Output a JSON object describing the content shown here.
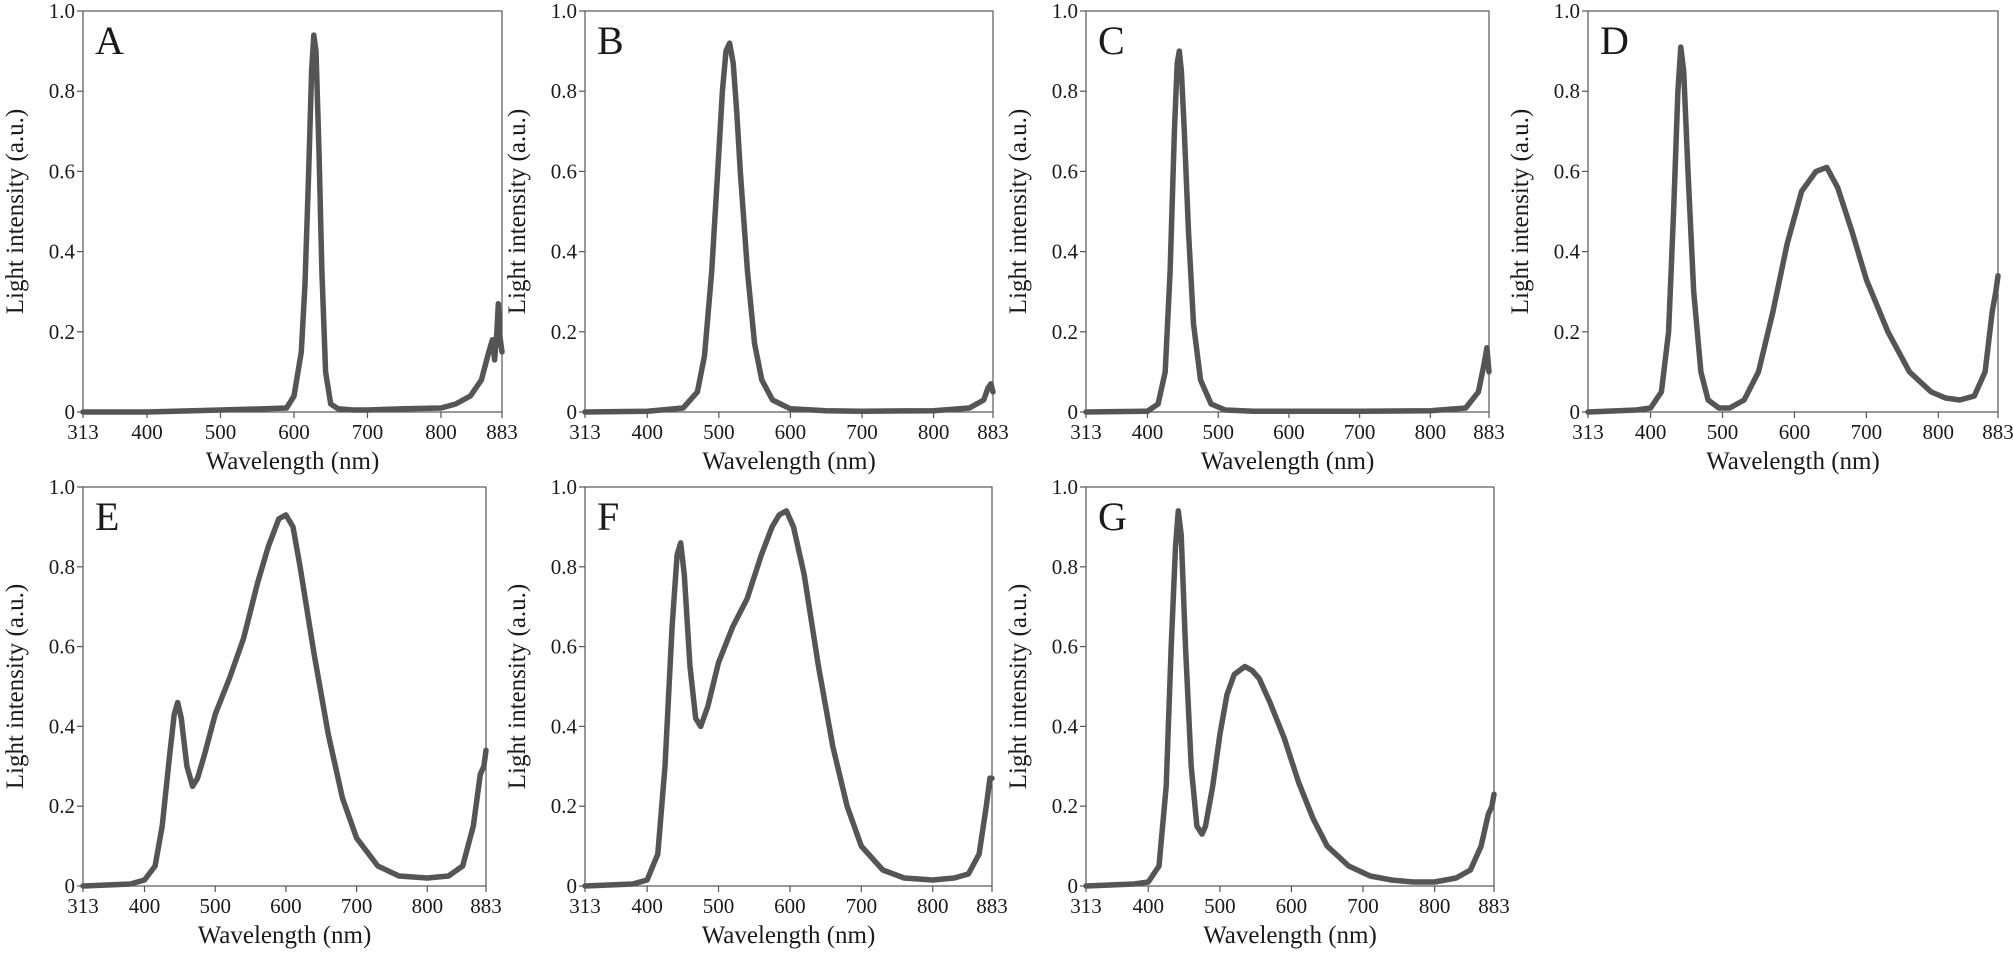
{
  "style": {
    "line_color": "#555555",
    "axis_color": "#555555",
    "background": "#ffffff"
  },
  "chart_data": [
    {
      "type": "line",
      "panel_label": "A",
      "xlabel": "Wavelength (nm)",
      "ylabel": "Light intensity (a.u.)",
      "xlim": [
        313,
        883
      ],
      "ylim": [
        0,
        1.0
      ],
      "x_ticks": [
        313,
        400,
        500,
        600,
        700,
        800,
        883
      ],
      "y_ticks": [
        0,
        0.2,
        0.4,
        0.6,
        0.8,
        1.0
      ],
      "grid": false,
      "x": [
        313,
        400,
        500,
        560,
        590,
        600,
        610,
        615,
        620,
        624,
        627,
        630,
        634,
        638,
        643,
        650,
        660,
        680,
        700,
        750,
        800,
        820,
        840,
        855,
        865,
        870,
        873,
        876,
        878,
        880,
        883
      ],
      "y": [
        0.0,
        0.0,
        0.005,
        0.008,
        0.01,
        0.04,
        0.15,
        0.32,
        0.6,
        0.85,
        0.94,
        0.9,
        0.65,
        0.35,
        0.1,
        0.02,
        0.008,
        0.005,
        0.005,
        0.008,
        0.01,
        0.02,
        0.04,
        0.08,
        0.15,
        0.18,
        0.13,
        0.2,
        0.27,
        0.19,
        0.15
      ]
    },
    {
      "type": "line",
      "panel_label": "B",
      "xlabel": "Wavelength (nm)",
      "ylabel": "Light intensity (a.u.)",
      "xlim": [
        313,
        883
      ],
      "ylim": [
        0,
        1.0
      ],
      "x_ticks": [
        313,
        400,
        500,
        600,
        700,
        800,
        883
      ],
      "y_ticks": [
        0,
        0.2,
        0.4,
        0.6,
        0.8,
        1.0
      ],
      "grid": false,
      "x": [
        313,
        400,
        450,
        470,
        480,
        490,
        500,
        505,
        510,
        515,
        520,
        525,
        530,
        540,
        550,
        560,
        575,
        600,
        650,
        700,
        800,
        850,
        870,
        876,
        880,
        883
      ],
      "y": [
        0.0,
        0.002,
        0.01,
        0.05,
        0.14,
        0.35,
        0.65,
        0.8,
        0.9,
        0.92,
        0.87,
        0.75,
        0.6,
        0.35,
        0.17,
        0.08,
        0.03,
        0.008,
        0.003,
        0.002,
        0.003,
        0.01,
        0.03,
        0.06,
        0.07,
        0.05
      ]
    },
    {
      "type": "line",
      "panel_label": "C",
      "xlabel": "Wavelength (nm)",
      "ylabel": "Light intensity (a.u.)",
      "xlim": [
        313,
        883
      ],
      "ylim": [
        0,
        1.0
      ],
      "x_ticks": [
        313,
        400,
        500,
        600,
        700,
        800,
        883
      ],
      "y_ticks": [
        0,
        0.2,
        0.4,
        0.6,
        0.8,
        1.0
      ],
      "grid": false,
      "x": [
        313,
        400,
        415,
        425,
        432,
        438,
        442,
        445,
        448,
        452,
        458,
        465,
        475,
        490,
        510,
        550,
        700,
        800,
        850,
        868,
        876,
        880,
        883
      ],
      "y": [
        0.0,
        0.002,
        0.02,
        0.1,
        0.35,
        0.7,
        0.87,
        0.9,
        0.85,
        0.7,
        0.45,
        0.22,
        0.08,
        0.02,
        0.005,
        0.002,
        0.002,
        0.003,
        0.01,
        0.05,
        0.12,
        0.16,
        0.1
      ]
    },
    {
      "type": "line",
      "panel_label": "D",
      "xlabel": "Wavelength (nm)",
      "ylabel": "Light intensity (a.u.)",
      "xlim": [
        313,
        883
      ],
      "ylim": [
        0,
        1.0
      ],
      "x_ticks": [
        313,
        400,
        500,
        600,
        700,
        800,
        883
      ],
      "y_ticks": [
        0,
        0.2,
        0.4,
        0.6,
        0.8,
        1.0
      ],
      "grid": false,
      "x": [
        313,
        380,
        400,
        415,
        425,
        432,
        438,
        442,
        446,
        452,
        460,
        470,
        480,
        495,
        510,
        530,
        550,
        570,
        590,
        610,
        630,
        645,
        660,
        680,
        700,
        730,
        760,
        790,
        810,
        830,
        850,
        865,
        875,
        880,
        883
      ],
      "y": [
        0.0,
        0.005,
        0.01,
        0.05,
        0.2,
        0.5,
        0.8,
        0.91,
        0.85,
        0.6,
        0.3,
        0.1,
        0.03,
        0.01,
        0.01,
        0.03,
        0.1,
        0.25,
        0.42,
        0.55,
        0.6,
        0.61,
        0.56,
        0.45,
        0.33,
        0.2,
        0.1,
        0.05,
        0.035,
        0.03,
        0.04,
        0.1,
        0.25,
        0.3,
        0.34
      ]
    },
    {
      "type": "line",
      "panel_label": "E",
      "xlabel": "Wavelength (nm)",
      "ylabel": "Light intensity (a.u.)",
      "xlim": [
        313,
        883
      ],
      "ylim": [
        0,
        1.0
      ],
      "x_ticks": [
        313,
        400,
        500,
        600,
        700,
        800,
        883
      ],
      "y_ticks": [
        0,
        0.2,
        0.4,
        0.6,
        0.8,
        1.0
      ],
      "grid": false,
      "x": [
        313,
        380,
        400,
        415,
        425,
        435,
        442,
        447,
        452,
        460,
        468,
        475,
        485,
        500,
        520,
        540,
        560,
        575,
        590,
        600,
        610,
        620,
        640,
        660,
        680,
        700,
        730,
        760,
        800,
        830,
        850,
        865,
        875,
        880,
        883
      ],
      "y": [
        0.0,
        0.005,
        0.015,
        0.05,
        0.15,
        0.32,
        0.43,
        0.46,
        0.42,
        0.3,
        0.25,
        0.27,
        0.33,
        0.43,
        0.52,
        0.62,
        0.76,
        0.85,
        0.92,
        0.93,
        0.9,
        0.8,
        0.58,
        0.38,
        0.22,
        0.12,
        0.05,
        0.025,
        0.02,
        0.025,
        0.05,
        0.15,
        0.28,
        0.3,
        0.34
      ]
    },
    {
      "type": "line",
      "panel_label": "F",
      "xlabel": "Wavelength (nm)",
      "ylabel": "Light intensity (a.u.)",
      "xlim": [
        313,
        883
      ],
      "ylim": [
        0,
        1.0
      ],
      "x_ticks": [
        313,
        400,
        500,
        600,
        700,
        800,
        883
      ],
      "y_ticks": [
        0,
        0.2,
        0.4,
        0.6,
        0.8,
        1.0
      ],
      "grid": false,
      "x": [
        313,
        380,
        400,
        415,
        425,
        435,
        442,
        447,
        452,
        460,
        468,
        475,
        485,
        500,
        520,
        540,
        560,
        575,
        585,
        595,
        605,
        620,
        640,
        660,
        680,
        700,
        730,
        760,
        800,
        830,
        850,
        865,
        875,
        880,
        883
      ],
      "y": [
        0.0,
        0.005,
        0.015,
        0.08,
        0.3,
        0.65,
        0.83,
        0.86,
        0.78,
        0.55,
        0.42,
        0.4,
        0.45,
        0.56,
        0.65,
        0.72,
        0.83,
        0.9,
        0.93,
        0.94,
        0.9,
        0.78,
        0.55,
        0.35,
        0.2,
        0.1,
        0.04,
        0.02,
        0.015,
        0.02,
        0.03,
        0.08,
        0.2,
        0.27,
        0.27
      ]
    },
    {
      "type": "line",
      "panel_label": "G",
      "xlabel": "Wavelength (nm)",
      "ylabel": "Light intensity (a.u.)",
      "xlim": [
        313,
        883
      ],
      "ylim": [
        0,
        1.0
      ],
      "x_ticks": [
        313,
        400,
        500,
        600,
        700,
        800,
        883
      ],
      "y_ticks": [
        0,
        0.2,
        0.4,
        0.6,
        0.8,
        1.0
      ],
      "grid": false,
      "x": [
        313,
        380,
        400,
        415,
        425,
        432,
        438,
        442,
        446,
        452,
        460,
        468,
        475,
        480,
        490,
        500,
        510,
        520,
        535,
        545,
        555,
        570,
        590,
        610,
        630,
        650,
        680,
        710,
        740,
        770,
        800,
        830,
        850,
        865,
        875,
        880,
        883
      ],
      "y": [
        0.0,
        0.005,
        0.01,
        0.05,
        0.25,
        0.6,
        0.85,
        0.94,
        0.88,
        0.6,
        0.3,
        0.15,
        0.13,
        0.15,
        0.25,
        0.38,
        0.48,
        0.53,
        0.55,
        0.54,
        0.52,
        0.46,
        0.37,
        0.26,
        0.17,
        0.1,
        0.05,
        0.025,
        0.015,
        0.01,
        0.01,
        0.02,
        0.04,
        0.1,
        0.18,
        0.2,
        0.23
      ]
    }
  ]
}
